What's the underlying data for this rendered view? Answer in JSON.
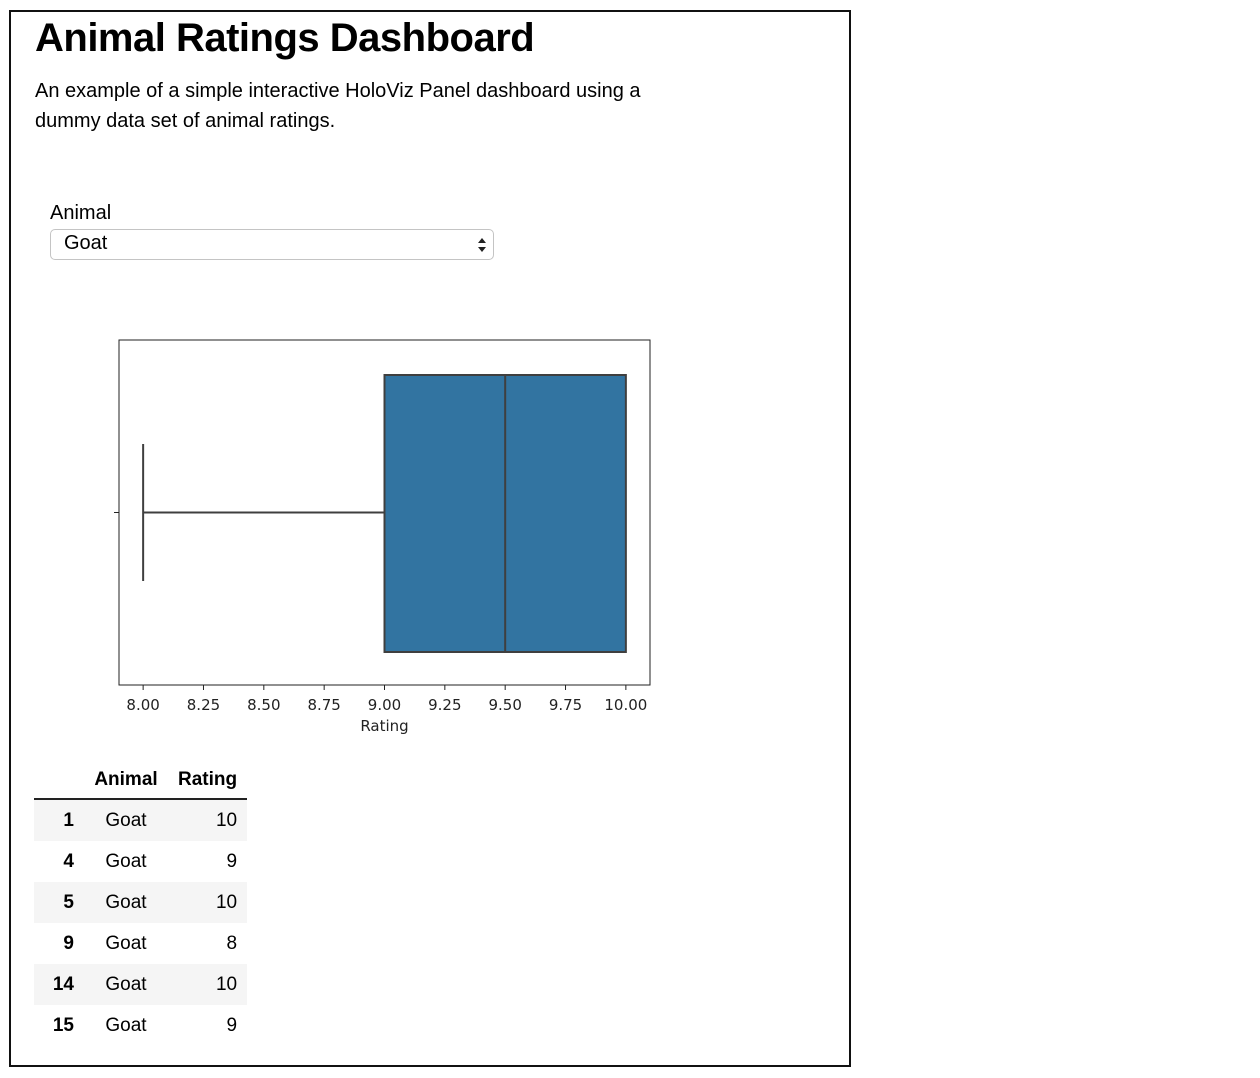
{
  "header": {
    "title": "Animal Ratings Dashboard",
    "description": "An example of a simple interactive HoloViz Panel dashboard using a dummy data set of animal ratings."
  },
  "selector": {
    "label": "Animal",
    "value": "Goat"
  },
  "chart_data": {
    "type": "boxplot",
    "orientation": "horizontal",
    "xlabel": "Rating",
    "ylabel": "",
    "xlim": [
      7.9,
      10.1
    ],
    "xticks": [
      "8.00",
      "8.25",
      "8.50",
      "8.75",
      "9.00",
      "9.25",
      "9.50",
      "9.75",
      "10.00"
    ],
    "tick_values": [
      8.0,
      8.25,
      8.5,
      8.75,
      9.0,
      9.25,
      9.5,
      9.75,
      10.0
    ],
    "box": {
      "whisker_low": 8.0,
      "q1": 9.0,
      "median": 9.5,
      "q3": 10.0,
      "whisker_high": 10.0,
      "color": "#3274a1",
      "edge_color": "#3f3f3f"
    }
  },
  "table": {
    "columns": [
      "",
      "Animal",
      "Rating"
    ],
    "rows": [
      {
        "index": "1",
        "animal": "Goat",
        "rating": "10"
      },
      {
        "index": "4",
        "animal": "Goat",
        "rating": "9"
      },
      {
        "index": "5",
        "animal": "Goat",
        "rating": "10"
      },
      {
        "index": "9",
        "animal": "Goat",
        "rating": "8"
      },
      {
        "index": "14",
        "animal": "Goat",
        "rating": "10"
      },
      {
        "index": "15",
        "animal": "Goat",
        "rating": "9"
      }
    ]
  }
}
